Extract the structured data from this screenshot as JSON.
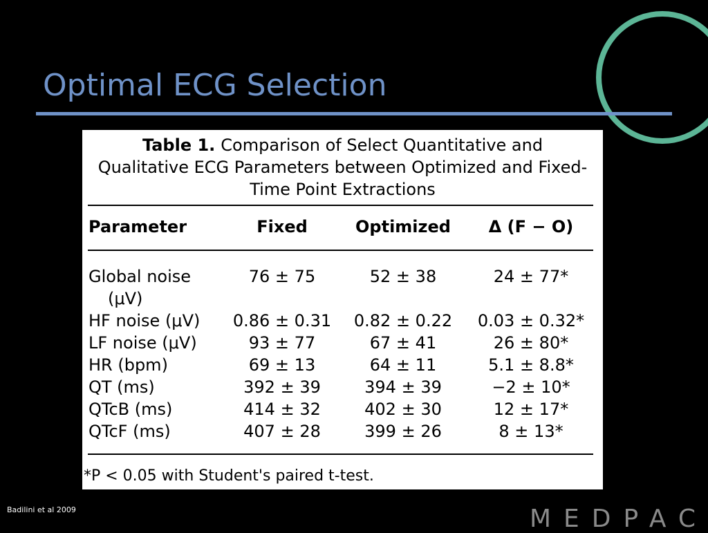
{
  "slide": {
    "title": "Optimal ECG Selection",
    "citation": "Badilini et al 2009",
    "logo": "MEDPACE"
  },
  "table": {
    "label": "Table 1.",
    "caption": "Comparison of Select Quantitative and Qualitative ECG Parameters between Optimized and Fixed-Time Point Extractions",
    "columns": [
      "Parameter",
      "Fixed",
      "Optimized",
      "Δ (F − O)"
    ],
    "rows": [
      [
        "Global noise (μV)",
        "76 ± 75",
        "52 ± 38",
        "24 ± 77*"
      ],
      [
        "HF noise (μV)",
        "0.86 ± 0.31",
        "0.82 ± 0.22",
        "0.03 ± 0.32*"
      ],
      [
        "LF noise (μV)",
        "93 ± 77",
        "67 ± 41",
        "26 ± 80*"
      ],
      [
        "HR (bpm)",
        "69 ± 13",
        "64 ± 11",
        "5.1 ± 8.8*"
      ],
      [
        "QT (ms)",
        "392 ± 39",
        "394 ± 39",
        "−2 ± 10*"
      ],
      [
        "QTcB (ms)",
        "414 ± 32",
        "402 ± 30",
        "12 ± 17*"
      ],
      [
        "QTcF (ms)",
        "407 ± 28",
        "399 ± 26",
        "8 ± 13*"
      ]
    ],
    "footnote": "*P < 0.05 with Student's paired t-test."
  }
}
